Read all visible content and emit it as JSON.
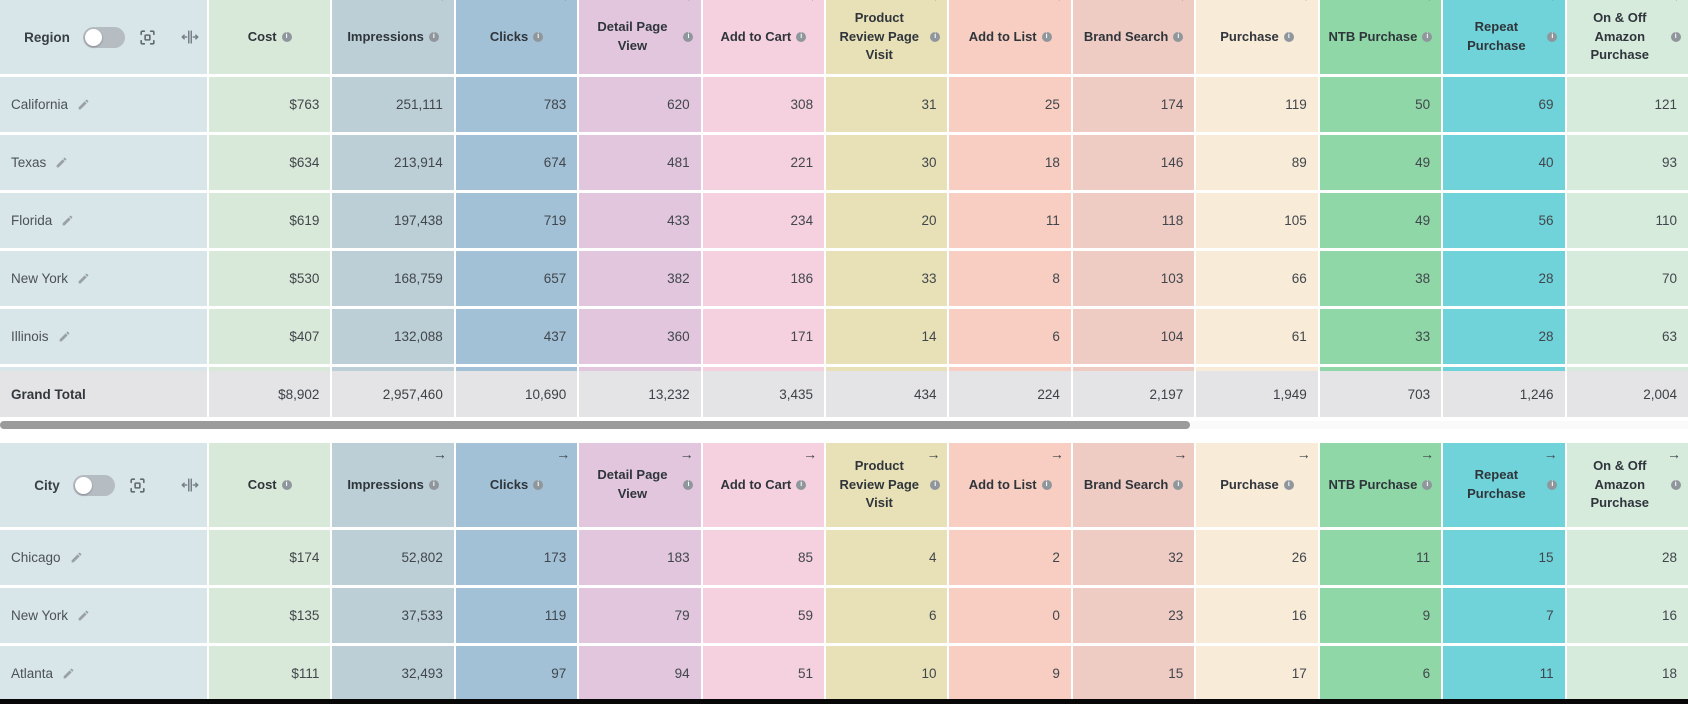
{
  "icons": {
    "expand_arrow": "→",
    "info": "i"
  },
  "dimension_column": {
    "color": "#d8e6ea"
  },
  "columns": [
    {
      "label": "Cost",
      "color": "#d9e9d9",
      "expand_arrow": false
    },
    {
      "label": "Impressions",
      "color": "#bccfd6",
      "expand_arrow": true
    },
    {
      "label": "Clicks",
      "color": "#a3c1d6",
      "expand_arrow": true
    },
    {
      "label": "Detail Page View",
      "color": "#e1c6dd",
      "expand_arrow": true
    },
    {
      "label": "Add to Cart",
      "color": "#f5d0de",
      "expand_arrow": true
    },
    {
      "label": "Product Review Page Visit",
      "color": "#e8e1b7",
      "expand_arrow": true
    },
    {
      "label": "Add to List",
      "color": "#f7cec1",
      "expand_arrow": true
    },
    {
      "label": "Brand Search",
      "color": "#eeccc4",
      "expand_arrow": true
    },
    {
      "label": "Purchase",
      "color": "#f8ebd8",
      "expand_arrow": true
    },
    {
      "label": "NTB Purchase",
      "color": "#8fd7a7",
      "expand_arrow": true
    },
    {
      "label": "Repeat Purchase",
      "color": "#70d3d9",
      "expand_arrow": true
    },
    {
      "label": "On & Off Amazon Purchase",
      "color": "#d7ebdd",
      "expand_arrow": true
    }
  ],
  "tables": [
    {
      "dimension_label": "Region",
      "rows": [
        {
          "name": "California",
          "values": [
            "$763",
            "251,111",
            "783",
            "620",
            "308",
            "31",
            "25",
            "174",
            "119",
            "50",
            "69",
            "121"
          ]
        },
        {
          "name": "Texas",
          "values": [
            "$634",
            "213,914",
            "674",
            "481",
            "221",
            "30",
            "18",
            "146",
            "89",
            "49",
            "40",
            "93"
          ]
        },
        {
          "name": "Florida",
          "values": [
            "$619",
            "197,438",
            "719",
            "433",
            "234",
            "20",
            "11",
            "118",
            "105",
            "49",
            "56",
            "110"
          ]
        },
        {
          "name": "New York",
          "values": [
            "$530",
            "168,759",
            "657",
            "382",
            "186",
            "33",
            "8",
            "103",
            "66",
            "38",
            "28",
            "70"
          ]
        },
        {
          "name": "Illinois",
          "values": [
            "$407",
            "132,088",
            "437",
            "360",
            "171",
            "14",
            "6",
            "104",
            "61",
            "33",
            "28",
            "63"
          ]
        }
      ],
      "grand_total": {
        "name": "Grand Total",
        "values": [
          "$8,902",
          "2,957,460",
          "10,690",
          "13,232",
          "3,435",
          "434",
          "224",
          "2,197",
          "1,949",
          "703",
          "1,246",
          "2,004"
        ]
      }
    },
    {
      "dimension_label": "City",
      "rows": [
        {
          "name": "Chicago",
          "values": [
            "$174",
            "52,802",
            "173",
            "183",
            "85",
            "4",
            "2",
            "32",
            "26",
            "11",
            "15",
            "28"
          ]
        },
        {
          "name": "New York",
          "values": [
            "$135",
            "37,533",
            "119",
            "79",
            "59",
            "6",
            "0",
            "23",
            "16",
            "9",
            "7",
            "16"
          ]
        },
        {
          "name": "Atlanta",
          "values": [
            "$111",
            "32,493",
            "97",
            "94",
            "51",
            "10",
            "9",
            "15",
            "17",
            "6",
            "11",
            "18"
          ]
        }
      ],
      "grand_total": null
    }
  ]
}
